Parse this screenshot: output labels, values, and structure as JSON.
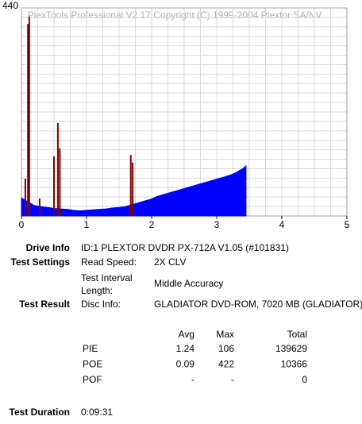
{
  "chart_data": {
    "type": "area",
    "title": "PlexTools Professional V2.17 Copyright (C) 1999-2004 Plextor SA/NV",
    "xlim": [
      0,
      5
    ],
    "ylim": [
      0,
      440
    ],
    "xticks": [
      0,
      1,
      2,
      3,
      4,
      5
    ],
    "yticks": [
      440
    ],
    "grid": true,
    "series": [
      {
        "style": "area",
        "color": "#0000ff",
        "x": [
          0,
          0.1,
          0.2,
          0.3,
          0.4,
          0.5,
          0.6,
          0.7,
          0.8,
          0.9,
          1.0,
          1.1,
          1.2,
          1.3,
          1.4,
          1.5,
          1.6,
          1.7,
          1.8,
          1.9,
          2.0,
          2.1,
          2.2,
          2.3,
          2.4,
          2.5,
          2.6,
          2.7,
          2.8,
          2.9,
          3.0,
          3.1,
          3.2,
          3.3,
          3.4,
          3.45
        ],
        "values": [
          38,
          30,
          22,
          20,
          18,
          16,
          15,
          14,
          12,
          11,
          12,
          13,
          14,
          15,
          17,
          18,
          20,
          24,
          28,
          32,
          36,
          42,
          46,
          50,
          54,
          58,
          62,
          66,
          70,
          74,
          78,
          82,
          86,
          92,
          100,
          106
        ]
      },
      {
        "style": "spike",
        "color": "#800000",
        "x": [
          0.06,
          0.1,
          0.12,
          0.28,
          0.5,
          0.56,
          0.59,
          1.68,
          1.71
        ],
        "values": [
          79,
          406,
          422,
          37,
          126,
          197,
          143,
          129,
          113
        ]
      }
    ]
  },
  "info": {
    "drive_info": {
      "label": "Drive Info",
      "value": "ID:1 PLEXTOR DVDR PX-712A V1.05 (#101831)"
    },
    "test_settings": {
      "label": "Test Settings",
      "read_speed_label": "Read Speed:",
      "read_speed": "2X CLV",
      "interval_label_1": "Test Interval",
      "interval_label_2": "Length:",
      "interval": "Middle Accuracy"
    },
    "test_result": {
      "label": "Test Result",
      "disc_label": "Disc Info:",
      "disc": "GLADIATOR DVD-ROM, 7020 MB (GLADIATOR)"
    },
    "results_table": {
      "header": [
        "Avg",
        "Max",
        "Total"
      ],
      "rows": [
        [
          "PIE",
          "1.24",
          "106",
          "139629"
        ],
        [
          "POE",
          "0.09",
          "422",
          "10366"
        ],
        [
          "POF",
          "-",
          "-",
          "0"
        ]
      ]
    },
    "test_duration": {
      "label": "Test Duration",
      "value": "0:09:31"
    }
  }
}
